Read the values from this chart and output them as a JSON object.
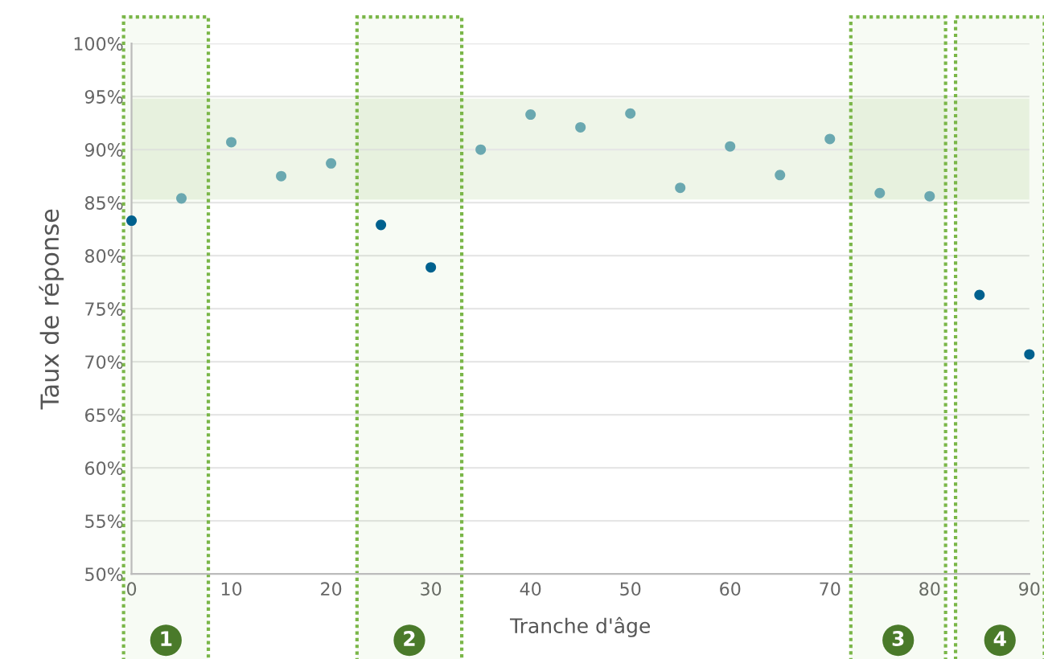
{
  "chart_data": {
    "type": "scatter",
    "xlabel": "Tranche d'âge",
    "ylabel": "Taux de réponse",
    "series": [
      {
        "color": "#00618e",
        "x": [
          0,
          25,
          30,
          85,
          90
        ],
        "values": [
          83.3,
          82.9,
          78.9,
          76.3,
          70.7
        ]
      },
      {
        "color": "#6aa8b0",
        "x": [
          5,
          10,
          15,
          20,
          35,
          40,
          45,
          50,
          55,
          60,
          65,
          70,
          75,
          80
        ],
        "values": [
          85.4,
          90.7,
          87.5,
          88.7,
          90.0,
          93.3,
          92.1,
          93.4,
          86.4,
          90.3,
          87.6,
          91.0,
          85.9,
          85.6
        ]
      }
    ],
    "bands": [
      {
        "axis": "y",
        "from": 85.3,
        "to": 94.8,
        "color": "#eef5e8"
      },
      {
        "axis": "x",
        "from": -0.8,
        "to": 7.7,
        "label": "1",
        "color": "#7ab648"
      },
      {
        "axis": "x",
        "from": 22.6,
        "to": 33.1,
        "label": "2",
        "color": "#7ab648"
      },
      {
        "axis": "x",
        "from": 72.1,
        "to": 81.6,
        "label": "3",
        "color": "#7ab648"
      },
      {
        "axis": "x",
        "from": 82.6,
        "to": 91.5,
        "label": "4",
        "color": "#7ab648"
      }
    ],
    "xlim": [
      0,
      90
    ],
    "xticks": [
      0,
      10,
      20,
      30,
      40,
      50,
      60,
      70,
      80,
      90
    ],
    "ylim": [
      50,
      100
    ],
    "yticks": [
      {
        "value": 50,
        "label": "50%"
      },
      {
        "value": 55,
        "label": "55%"
      },
      {
        "value": 60,
        "label": "60%"
      },
      {
        "value": 65,
        "label": "65%"
      },
      {
        "value": 70,
        "label": "70%"
      },
      {
        "value": 75,
        "label": "75%"
      },
      {
        "value": 80,
        "label": "80%"
      },
      {
        "value": 85,
        "label": "85%"
      },
      {
        "value": 90,
        "label": "90%"
      },
      {
        "value": 95,
        "label": "95%"
      },
      {
        "value": 100,
        "label": "100%"
      }
    ],
    "grid": "y",
    "marker": "circle"
  }
}
